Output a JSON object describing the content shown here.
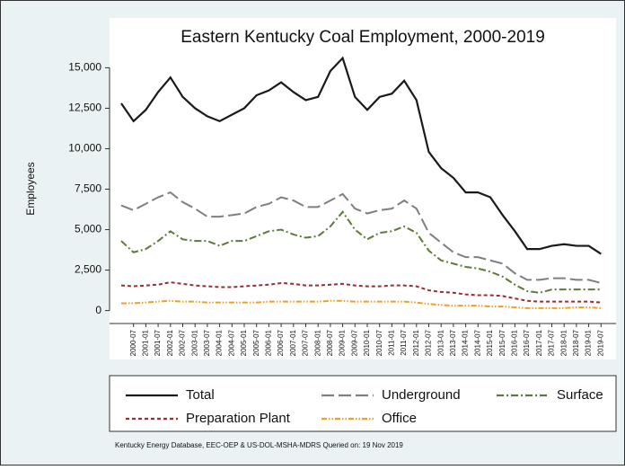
{
  "chart_data": {
    "type": "line",
    "title": "Eastern Kentucky Coal Employment, 2000-2019",
    "y_label": "Employees",
    "source": "Kentucky Energy Database, EEC-OEP & US-DOL-MSHA-MDRS Queried on: 19 Nov 2019",
    "categories": [
      null,
      "2000-07",
      "2001-01",
      "2001-07",
      "2002-01",
      "2002-07",
      "2003-01",
      "2003-07",
      "2004-01",
      "2004-07",
      "2005-01",
      "2005-07",
      "2006-01",
      "2006-07",
      "2007-01",
      "2007-07",
      "2008-01",
      "2008-07",
      "2009-01",
      "2009-07",
      "2010-01",
      "2010-07",
      "2011-01",
      "2011-07",
      "2012-01",
      "2012-07",
      "2013-01",
      "2013-07",
      "2014-01",
      "2014-07",
      "2015-01",
      "2015-07",
      "2016-01",
      "2016-07",
      "2017-01",
      "2017-07",
      "2018-01",
      "2018-07",
      "2019-01",
      "2019-07"
    ],
    "series": [
      {
        "name": "Total",
        "color": "#1a1a1a",
        "style": "solid",
        "values": [
          12800,
          11700,
          12400,
          13500,
          14400,
          13200,
          12500,
          12000,
          11700,
          12100,
          12500,
          13300,
          13600,
          14100,
          13500,
          13000,
          13200,
          14800,
          15600,
          13200,
          12400,
          13200,
          13400,
          14200,
          13000,
          9800,
          8800,
          8200,
          7300,
          7300,
          7000,
          5900,
          4900,
          3800,
          3800,
          4000,
          4100,
          4000,
          4000,
          3500
        ]
      },
      {
        "name": "Underground",
        "color": "#7f7f7f",
        "style": "longdash",
        "values": [
          6500,
          6200,
          6600,
          7000,
          7300,
          6700,
          6300,
          5800,
          5800,
          5900,
          6000,
          6400,
          6600,
          7000,
          6800,
          6400,
          6400,
          6800,
          7200,
          6300,
          6000,
          6200,
          6300,
          6800,
          6300,
          4800,
          4200,
          3600,
          3300,
          3300,
          3100,
          2900,
          2300,
          1900,
          1900,
          2000,
          2000,
          1900,
          1900,
          1700
        ]
      },
      {
        "name": "Surface",
        "color": "#5d7a3a",
        "style": "dashdot",
        "values": [
          4300,
          3600,
          3800,
          4300,
          4900,
          4400,
          4300,
          4300,
          4000,
          4300,
          4300,
          4600,
          4900,
          5000,
          4700,
          4500,
          4600,
          5200,
          6100,
          5000,
          4400,
          4800,
          4900,
          5200,
          4800,
          3700,
          3100,
          2900,
          2700,
          2600,
          2400,
          2100,
          1600,
          1200,
          1100,
          1300,
          1300,
          1300,
          1300,
          1300
        ]
      },
      {
        "name": "Preparation Plant",
        "color": "#9b2d30",
        "style": "shortdash",
        "values": [
          1550,
          1500,
          1550,
          1600,
          1750,
          1650,
          1550,
          1500,
          1450,
          1450,
          1500,
          1550,
          1600,
          1700,
          1650,
          1550,
          1550,
          1600,
          1650,
          1550,
          1500,
          1500,
          1550,
          1550,
          1500,
          1250,
          1150,
          1100,
          1000,
          950,
          950,
          900,
          750,
          600,
          550,
          550,
          550,
          550,
          550,
          500
        ]
      },
      {
        "name": "Office",
        "color": "#f0a020",
        "style": "dashdotdot",
        "values": [
          450,
          450,
          500,
          550,
          600,
          550,
          550,
          500,
          500,
          500,
          500,
          500,
          550,
          550,
          550,
          550,
          550,
          600,
          600,
          550,
          550,
          550,
          550,
          550,
          500,
          400,
          350,
          300,
          300,
          300,
          250,
          250,
          200,
          150,
          150,
          150,
          150,
          200,
          200,
          150
        ]
      }
    ],
    "ylim": [
      -800,
      16300
    ],
    "yticks": [
      0,
      {
        "value": 2500,
        "label": "2,500"
      },
      {
        "value": 5000,
        "label": "5,000"
      },
      {
        "value": 7500,
        "label": "7,500"
      },
      {
        "value": 10000,
        "label": "10,000"
      },
      {
        "value": 12500,
        "label": "12,500"
      },
      {
        "value": 15000,
        "label": "15,000"
      }
    ]
  }
}
